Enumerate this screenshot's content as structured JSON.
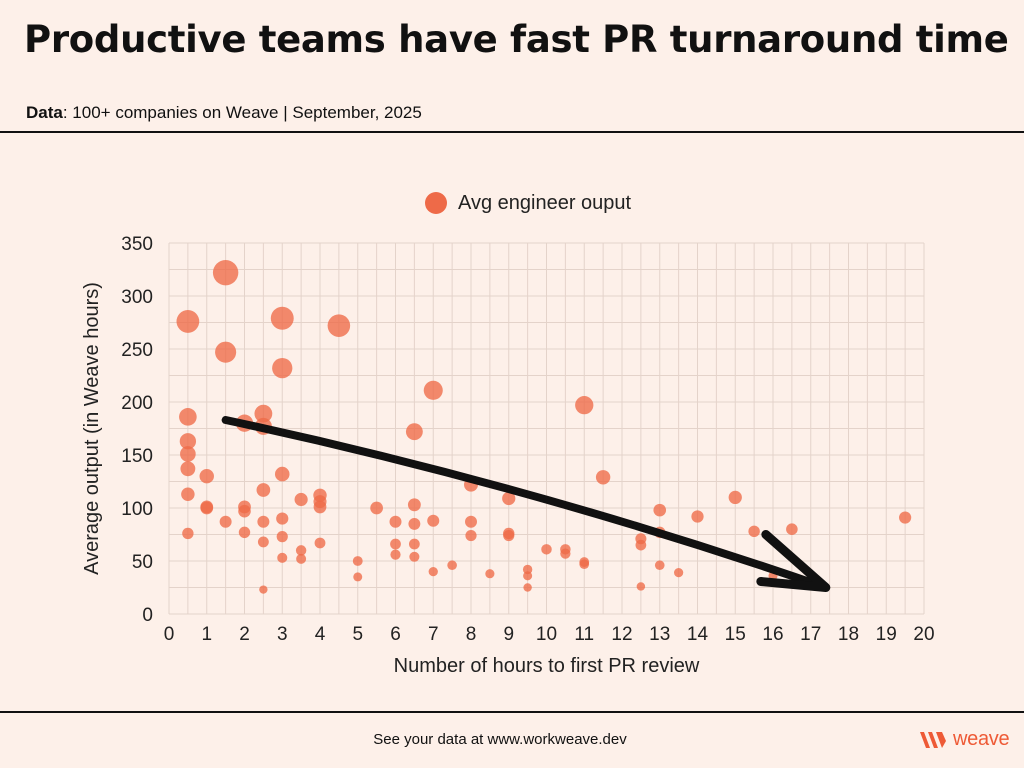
{
  "title": "Productive teams have fast PR turnaround time",
  "subtitle": {
    "label": "Data",
    "text": ": 100+ companies on Weave | September, 2025"
  },
  "footer": {
    "text": "See your data at www.workweave.dev",
    "logo_text": "weave"
  },
  "colors": {
    "point": "#ee6a48",
    "grid": "#e4d3ca",
    "arrow": "#111111",
    "brand": "#ee5a36"
  },
  "chart_data": {
    "type": "scatter",
    "legend": "Avg engineer ouput",
    "legend_position": "top-center",
    "xlabel": "Number of hours to first PR review",
    "ylabel": "Average output (in Weave hours)",
    "xlim": [
      0,
      20
    ],
    "ylim": [
      0,
      350
    ],
    "xticks": [
      "0",
      "1",
      "2",
      "3",
      "4",
      "5",
      "6",
      "7",
      "8",
      "9",
      "10",
      "11",
      "12",
      "13",
      "14",
      "15",
      "16",
      "17",
      "18",
      "19",
      "20"
    ],
    "yticks": [
      "0",
      "50",
      "100",
      "150",
      "200",
      "250",
      "300",
      "350"
    ],
    "grid": true,
    "trend_arrow": {
      "from": [
        1.5,
        183
      ],
      "to": [
        17.4,
        25
      ]
    },
    "points": [
      {
        "x": 0.5,
        "y": 276
      },
      {
        "x": 0.5,
        "y": 186
      },
      {
        "x": 0.5,
        "y": 163
      },
      {
        "x": 0.5,
        "y": 151
      },
      {
        "x": 0.5,
        "y": 137
      },
      {
        "x": 0.5,
        "y": 113
      },
      {
        "x": 0.5,
        "y": 76
      },
      {
        "x": 1,
        "y": 130
      },
      {
        "x": 1,
        "y": 101
      },
      {
        "x": 1,
        "y": 100
      },
      {
        "x": 1.5,
        "y": 322
      },
      {
        "x": 1.5,
        "y": 247
      },
      {
        "x": 1.5,
        "y": 87
      },
      {
        "x": 2,
        "y": 180
      },
      {
        "x": 2,
        "y": 101
      },
      {
        "x": 2,
        "y": 97
      },
      {
        "x": 2,
        "y": 77
      },
      {
        "x": 2.5,
        "y": 189
      },
      {
        "x": 2.5,
        "y": 177
      },
      {
        "x": 2.5,
        "y": 117
      },
      {
        "x": 2.5,
        "y": 87
      },
      {
        "x": 2.5,
        "y": 68
      },
      {
        "x": 2.5,
        "y": 23
      },
      {
        "x": 3,
        "y": 279
      },
      {
        "x": 3,
        "y": 232
      },
      {
        "x": 3,
        "y": 132
      },
      {
        "x": 3,
        "y": 90
      },
      {
        "x": 3,
        "y": 73
      },
      {
        "x": 3,
        "y": 53
      },
      {
        "x": 3.5,
        "y": 108
      },
      {
        "x": 3.5,
        "y": 60
      },
      {
        "x": 3.5,
        "y": 52
      },
      {
        "x": 4,
        "y": 112
      },
      {
        "x": 4,
        "y": 106
      },
      {
        "x": 4,
        "y": 101
      },
      {
        "x": 4,
        "y": 67
      },
      {
        "x": 4.5,
        "y": 272
      },
      {
        "x": 5,
        "y": 50
      },
      {
        "x": 5,
        "y": 35
      },
      {
        "x": 5.5,
        "y": 100
      },
      {
        "x": 6,
        "y": 87
      },
      {
        "x": 6,
        "y": 66
      },
      {
        "x": 6,
        "y": 56
      },
      {
        "x": 6.5,
        "y": 172
      },
      {
        "x": 6.5,
        "y": 103
      },
      {
        "x": 6.5,
        "y": 85
      },
      {
        "x": 6.5,
        "y": 66
      },
      {
        "x": 6.5,
        "y": 54
      },
      {
        "x": 7,
        "y": 211
      },
      {
        "x": 7,
        "y": 88
      },
      {
        "x": 7,
        "y": 40
      },
      {
        "x": 7.5,
        "y": 46
      },
      {
        "x": 8,
        "y": 122
      },
      {
        "x": 8,
        "y": 87
      },
      {
        "x": 8,
        "y": 74
      },
      {
        "x": 8.5,
        "y": 38
      },
      {
        "x": 9,
        "y": 109
      },
      {
        "x": 9,
        "y": 76
      },
      {
        "x": 9,
        "y": 74
      },
      {
        "x": 9.5,
        "y": 42
      },
      {
        "x": 9.5,
        "y": 36
      },
      {
        "x": 9.5,
        "y": 25
      },
      {
        "x": 10,
        "y": 61
      },
      {
        "x": 10.5,
        "y": 61
      },
      {
        "x": 10.5,
        "y": 57
      },
      {
        "x": 11,
        "y": 197
      },
      {
        "x": 11,
        "y": 49
      },
      {
        "x": 11,
        "y": 47
      },
      {
        "x": 11.5,
        "y": 129
      },
      {
        "x": 12.5,
        "y": 71
      },
      {
        "x": 12.5,
        "y": 65
      },
      {
        "x": 12.5,
        "y": 26
      },
      {
        "x": 13,
        "y": 98
      },
      {
        "x": 13,
        "y": 77
      },
      {
        "x": 13,
        "y": 46
      },
      {
        "x": 13.5,
        "y": 39
      },
      {
        "x": 14,
        "y": 92
      },
      {
        "x": 15,
        "y": 110
      },
      {
        "x": 15.5,
        "y": 78
      },
      {
        "x": 16,
        "y": 36
      },
      {
        "x": 16.5,
        "y": 80
      },
      {
        "x": 19.5,
        "y": 91
      }
    ]
  }
}
